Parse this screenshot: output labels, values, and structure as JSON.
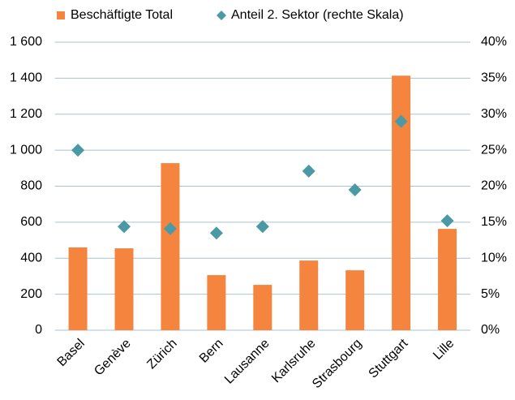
{
  "chart_data": {
    "type": "bar_scatter",
    "categories": [
      "Basel",
      "Genève",
      "Zürich",
      "Bern",
      "Lausanne",
      "Karlsruhe",
      "Strasbourg",
      "Stuttgart",
      "Lille"
    ],
    "series": [
      {
        "name": "Beschäftigte Total",
        "color": "#f5843f",
        "type": "bar",
        "values": [
          460,
          455,
          928,
          306,
          252,
          387,
          333,
          1414,
          563
        ]
      },
      {
        "name": "Anteil 2. Sektor (rechte Skala)",
        "color": "#4a9aa5",
        "type": "scatter",
        "axis": "y2",
        "values": [
          25.0,
          14.4,
          14.1,
          13.5,
          14.4,
          22.1,
          19.5,
          29.0,
          15.2
        ]
      }
    ],
    "ylim": [
      0,
      1600
    ],
    "yticks": [
      0,
      200,
      400,
      600,
      800,
      {
        "value": 1000,
        "label": "1 000"
      },
      {
        "value": 1200,
        "label": "1 200"
      },
      {
        "value": 1400,
        "label": "1 400"
      },
      {
        "value": 1600,
        "label": "1 600"
      }
    ],
    "y2lim": [
      0,
      40
    ],
    "y2ticks": [
      {
        "value": 0,
        "label": "0%"
      },
      {
        "value": 5,
        "label": "5%"
      },
      {
        "value": 10,
        "label": "10%"
      },
      {
        "value": 15,
        "label": "15%"
      },
      {
        "value": 20,
        "label": "20%"
      },
      {
        "value": 25,
        "label": "25%"
      },
      {
        "value": 30,
        "label": "30%"
      },
      {
        "value": 35,
        "label": "35%"
      },
      {
        "value": 40,
        "label": "40%"
      }
    ],
    "grid": true,
    "legend": "top"
  }
}
